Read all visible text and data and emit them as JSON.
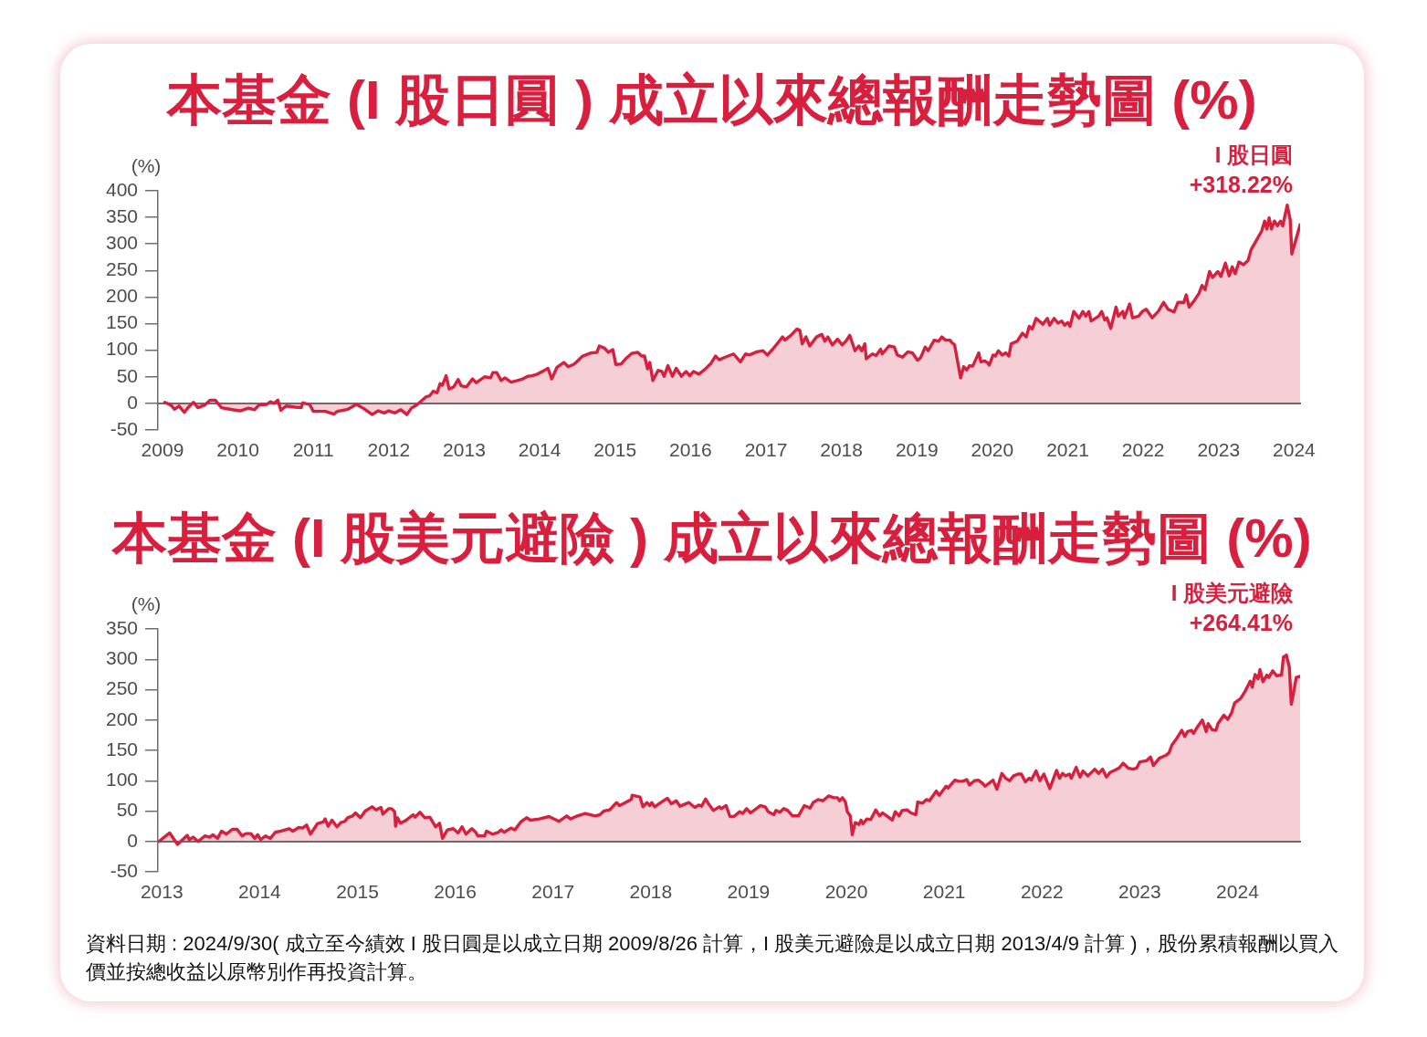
{
  "chart_data": [
    {
      "type": "area",
      "title": "本基金 (I 股日圓 ) 成立以來總報酬走勢圖 (%)",
      "ylabel": "(%)",
      "x": [
        2009.03,
        2009.11,
        2009.16,
        2009.22,
        2009.29,
        2009.34,
        2009.41,
        2009.47,
        2009.56,
        2009.63,
        2009.7,
        2009.78,
        2009.89,
        2010.03,
        2010.14,
        2010.22,
        2010.28,
        2010.38,
        2010.43,
        2010.48,
        2010.53,
        2010.57,
        2010.64,
        2010.76,
        2010.84,
        2010.86,
        2010.95,
        2011.0,
        2011.16,
        2011.27,
        2011.32,
        2011.46,
        2011.57,
        2011.66,
        2011.78,
        2011.86,
        2011.94,
        2012.0,
        2012.08,
        2012.16,
        2012.24,
        2012.3,
        2012.38,
        2012.49,
        2012.54,
        2012.59,
        2012.64,
        2012.68,
        2012.71,
        2012.76,
        2012.8,
        2012.86,
        2012.92,
        2012.96,
        2013.03,
        2013.11,
        2013.16,
        2013.27,
        2013.35,
        2013.38,
        2013.43,
        2013.49,
        2013.54,
        2013.62,
        2013.68,
        2013.76,
        2013.84,
        2013.9,
        2013.97,
        2014.05,
        2014.11,
        2014.16,
        2014.23,
        2014.32,
        2014.38,
        2014.46,
        2014.57,
        2014.68,
        2014.76,
        2014.79,
        2014.86,
        2014.91,
        2014.97,
        2015.01,
        2015.08,
        2015.14,
        2015.22,
        2015.3,
        2015.35,
        2015.39,
        2015.43,
        2015.46,
        2015.5,
        2015.57,
        2015.62,
        2015.65,
        2015.7,
        2015.76,
        2015.81,
        2015.88,
        2015.94,
        2015.99,
        2016.04,
        2016.11,
        2016.19,
        2016.27,
        2016.33,
        2016.38,
        2016.46,
        2016.57,
        2016.66,
        2016.73,
        2016.78,
        2016.88,
        2016.96,
        2017.02,
        2017.09,
        2017.22,
        2017.25,
        2017.33,
        2017.41,
        2017.45,
        2017.48,
        2017.53,
        2017.58,
        2017.67,
        2017.74,
        2017.78,
        2017.82,
        2017.88,
        2017.95,
        2018.01,
        2018.06,
        2018.11,
        2018.18,
        2018.23,
        2018.27,
        2018.31,
        2018.33,
        2018.41,
        2018.46,
        2018.52,
        2018.54,
        2018.63,
        2018.7,
        2018.74,
        2018.81,
        2018.88,
        2018.94,
        2019.01,
        2019.05,
        2019.11,
        2019.15,
        2019.23,
        2019.29,
        2019.33,
        2019.38,
        2019.44,
        2019.46,
        2019.5,
        2019.58,
        2019.62,
        2019.66,
        2019.7,
        2019.74,
        2019.82,
        2019.85,
        2019.9,
        2019.94,
        2019.96,
        2020.01,
        2020.04,
        2020.08,
        2020.13,
        2020.18,
        2020.22,
        2020.25,
        2020.33,
        2020.4,
        2020.45,
        2020.49,
        2020.53,
        2020.58,
        2020.67,
        2020.73,
        2020.76,
        2020.82,
        2020.87,
        2020.92,
        2020.96,
        2021.0,
        2021.03,
        2021.08,
        2021.15,
        2021.2,
        2021.24,
        2021.28,
        2021.31,
        2021.41,
        2021.45,
        2021.49,
        2021.52,
        2021.57,
        2021.64,
        2021.67,
        2021.73,
        2021.75,
        2021.82,
        2021.86,
        2021.94,
        2021.99,
        2022.04,
        2022.12,
        2022.2,
        2022.27,
        2022.33,
        2022.41,
        2022.46,
        2022.54,
        2022.57,
        2022.61,
        2022.67,
        2022.74,
        2022.78,
        2022.82,
        2022.88,
        2022.92,
        2022.99,
        2023.03,
        2023.09,
        2023.14,
        2023.18,
        2023.22,
        2023.27,
        2023.33,
        2023.39,
        2023.43,
        2023.49,
        2023.57,
        2023.61,
        2023.64,
        2023.67,
        2023.7,
        2023.74,
        2023.78,
        2023.82,
        2023.85,
        2023.91,
        2023.95,
        2023.97,
        2024.02,
        2024.08
      ],
      "series": [
        {
          "name": "I 股日圓",
          "color": "#d6203e",
          "values": [
            2,
            -3,
            -11,
            -5,
            -17,
            -8,
            2,
            -8,
            -3,
            6,
            6,
            -8,
            -11,
            -14,
            -9,
            -12,
            -3,
            -2,
            3,
            0,
            6,
            -13,
            -5,
            -7,
            -8,
            1,
            -2,
            -15,
            -15,
            -20,
            -15,
            -11,
            -2,
            -9,
            -21,
            -14,
            -18,
            -14,
            -18,
            -12,
            -21,
            -9,
            -2,
            12,
            14,
            23,
            20,
            37,
            34,
            52,
            27,
            31,
            45,
            33,
            31,
            46,
            39,
            50,
            48,
            58,
            58,
            43,
            48,
            40,
            42,
            45,
            51,
            52,
            55,
            61,
            66,
            46,
            68,
            77,
            69,
            74,
            89,
            95,
            96,
            108,
            104,
            96,
            101,
            73,
            74,
            84,
            94,
            96,
            89,
            89,
            65,
            77,
            43,
            62,
            60,
            51,
            71,
            51,
            66,
            51,
            60,
            52,
            60,
            55,
            64,
            75,
            89,
            82,
            87,
            93,
            78,
            93,
            91,
            97,
            99,
            91,
            102,
            125,
            119,
            128,
            140,
            137,
            112,
            125,
            108,
            125,
            130,
            117,
            125,
            110,
            121,
            110,
            117,
            128,
            99,
            108,
            99,
            112,
            84,
            93,
            90,
            102,
            93,
            108,
            106,
            91,
            87,
            97,
            95,
            81,
            86,
            106,
            99,
            119,
            117,
            125,
            119,
            119,
            115,
            110,
            48,
            69,
            63,
            71,
            70,
            95,
            78,
            80,
            76,
            72,
            91,
            89,
            99,
            91,
            95,
            89,
            112,
            117,
            132,
            125,
            145,
            140,
            160,
            149,
            160,
            147,
            160,
            151,
            155,
            147,
            152,
            145,
            173,
            160,
            173,
            164,
            173,
            155,
            164,
            173,
            157,
            161,
            141,
            181,
            164,
            173,
            161,
            187,
            161,
            164,
            173,
            177,
            161,
            173,
            190,
            177,
            172,
            190,
            190,
            204,
            181,
            192,
            207,
            222,
            214,
            248,
            237,
            248,
            239,
            264,
            240,
            257,
            244,
            266,
            261,
            269,
            289,
            304,
            324,
            343,
            328,
            349,
            328,
            343,
            334,
            343,
            334,
            373,
            345,
            281,
            306,
            336
          ]
        }
      ],
      "xlim": [
        2008.94,
        2024.08
      ],
      "xticks": [
        2009,
        2010,
        2011,
        2012,
        2013,
        2014,
        2015,
        2016,
        2017,
        2018,
        2019,
        2020,
        2021,
        2022,
        2023,
        2024
      ],
      "ylim": [
        -50,
        400
      ],
      "yticks": [
        -50,
        0,
        50,
        100,
        150,
        200,
        250,
        300,
        350,
        400
      ],
      "grid": false,
      "legend": false,
      "marker": "none",
      "line_style": "solid",
      "annotations": [
        "+318.22%"
      ]
    },
    {
      "type": "area",
      "title": "本基金 (I 股美元避險 ) 成立以來總報酬走勢圖 (%)",
      "ylabel": "(%)",
      "x": [
        2012.97,
        2013.08,
        2013.16,
        2013.26,
        2013.28,
        2013.32,
        2013.37,
        2013.44,
        2013.49,
        2013.52,
        2013.57,
        2013.61,
        2013.66,
        2013.72,
        2013.77,
        2013.82,
        2013.86,
        2013.91,
        2013.95,
        2013.98,
        2014.01,
        2014.06,
        2014.11,
        2014.16,
        2014.22,
        2014.26,
        2014.3,
        2014.34,
        2014.4,
        2014.44,
        2014.48,
        2014.52,
        2014.59,
        2014.65,
        2014.67,
        2014.7,
        2014.74,
        2014.79,
        2014.83,
        2014.87,
        2014.9,
        2014.95,
        2014.98,
        2015.03,
        2015.08,
        2015.15,
        2015.19,
        2015.24,
        2015.26,
        2015.32,
        2015.35,
        2015.38,
        2015.39,
        2015.41,
        2015.44,
        2015.49,
        2015.53,
        2015.57,
        2015.59,
        2015.64,
        2015.69,
        2015.74,
        2015.8,
        2015.84,
        2015.87,
        2015.92,
        2015.98,
        2016.03,
        2016.07,
        2016.11,
        2016.17,
        2016.21,
        2016.23,
        2016.3,
        2016.32,
        2016.38,
        2016.44,
        2016.47,
        2016.5,
        2016.57,
        2016.61,
        2016.67,
        2016.73,
        2016.77,
        2016.86,
        2016.96,
        2017.06,
        2017.14,
        2017.18,
        2017.25,
        2017.33,
        2017.43,
        2017.48,
        2017.52,
        2017.58,
        2017.65,
        2017.68,
        2017.74,
        2017.8,
        2017.81,
        2017.89,
        2017.92,
        2017.96,
        2017.99,
        2018.01,
        2018.04,
        2018.12,
        2018.17,
        2018.21,
        2018.26,
        2018.3,
        2018.39,
        2018.45,
        2018.49,
        2018.52,
        2018.56,
        2018.59,
        2018.64,
        2018.7,
        2018.72,
        2018.77,
        2018.81,
        2018.85,
        2018.91,
        2018.94,
        2018.98,
        2019.02,
        2019.12,
        2019.17,
        2019.2,
        2019.26,
        2019.28,
        2019.32,
        2019.36,
        2019.4,
        2019.45,
        2019.51,
        2019.57,
        2019.63,
        2019.66,
        2019.71,
        2019.76,
        2019.82,
        2019.87,
        2019.91,
        2019.93,
        2019.96,
        2019.99,
        2020.01,
        2020.04,
        2020.06,
        2020.09,
        2020.13,
        2020.15,
        2020.17,
        2020.21,
        2020.25,
        2020.3,
        2020.34,
        2020.37,
        2020.42,
        2020.47,
        2020.5,
        2020.54,
        2020.57,
        2020.62,
        2020.66,
        2020.71,
        2020.73,
        2020.78,
        2020.82,
        2020.85,
        2020.92,
        2020.95,
        2021.02,
        2021.04,
        2021.11,
        2021.15,
        2021.19,
        2021.23,
        2021.26,
        2021.31,
        2021.35,
        2021.39,
        2021.42,
        2021.5,
        2021.54,
        2021.59,
        2021.63,
        2021.67,
        2021.71,
        2021.76,
        2021.79,
        2021.83,
        2021.87,
        2021.89,
        2021.94,
        2021.98,
        2022.02,
        2022.08,
        2022.15,
        2022.18,
        2022.21,
        2022.24,
        2022.28,
        2022.3,
        2022.35,
        2022.39,
        2022.42,
        2022.47,
        2022.54,
        2022.58,
        2022.62,
        2022.66,
        2022.7,
        2022.74,
        2022.79,
        2022.83,
        2022.88,
        2022.93,
        2022.97,
        2023.0,
        2023.07,
        2023.11,
        2023.14,
        2023.2,
        2023.27,
        2023.3,
        2023.33,
        2023.38,
        2023.43,
        2023.46,
        2023.49,
        2023.53,
        2023.55,
        2023.58,
        2023.64,
        2023.68,
        2023.7,
        2023.74,
        2023.78,
        2023.8,
        2023.86,
        2023.9,
        2023.94,
        2023.97,
        2024.03,
        2024.08,
        2024.13,
        2024.15,
        2024.18,
        2024.21,
        2024.23,
        2024.26,
        2024.3,
        2024.32,
        2024.36,
        2024.4,
        2024.45,
        2024.47,
        2024.5,
        2024.53,
        2024.55,
        2024.58,
        2024.6,
        2024.64
      ],
      "series": [
        {
          "name": "I 股美元避險",
          "color": "#d6203e",
          "values": [
            0,
            14,
            -5,
            10,
            3,
            7,
            0,
            9,
            7,
            11,
            5,
            17,
            12,
            20,
            20,
            9,
            13,
            13,
            5,
            11,
            3,
            9,
            5,
            15,
            17,
            19,
            21,
            17,
            23,
            22,
            27,
            12,
            29,
            32,
            37,
            25,
            35,
            24,
            31,
            33,
            39,
            42,
            47,
            39,
            50,
            57,
            52,
            56,
            45,
            54,
            54,
            49,
            25,
            39,
            30,
            34,
            39,
            44,
            40,
            48,
            39,
            40,
            24,
            30,
            5,
            19,
            21,
            14,
            24,
            12,
            21,
            15,
            9,
            9,
            17,
            12,
            15,
            19,
            15,
            22,
            19,
            32,
            39,
            35,
            37,
            41,
            33,
            42,
            37,
            42,
            46,
            42,
            44,
            50,
            52,
            64,
            59,
            64,
            69,
            76,
            73,
            57,
            64,
            59,
            64,
            57,
            66,
            71,
            62,
            67,
            58,
            64,
            56,
            60,
            58,
            70,
            62,
            51,
            57,
            54,
            59,
            41,
            41,
            49,
            46,
            54,
            47,
            59,
            57,
            49,
            44,
            51,
            48,
            54,
            51,
            42,
            42,
            59,
            55,
            64,
            69,
            67,
            75,
            72,
            72,
            67,
            72,
            65,
            49,
            42,
            11,
            31,
            28,
            35,
            29,
            37,
            36,
            52,
            42,
            47,
            41,
            35,
            49,
            42,
            51,
            52,
            47,
            44,
            65,
            63,
            69,
            67,
            83,
            76,
            91,
            88,
            101,
            99,
            99,
            102,
            93,
            100,
            101,
            96,
            91,
            101,
            86,
            112,
            104,
            100,
            108,
            111,
            111,
            98,
            104,
            101,
            116,
            100,
            111,
            87,
            117,
            104,
            112,
            108,
            111,
            104,
            122,
            106,
            116,
            108,
            119,
            112,
            119,
            106,
            114,
            117,
            121,
            129,
            121,
            119,
            121,
            131,
            133,
            139,
            125,
            137,
            142,
            146,
            159,
            170,
            183,
            173,
            181,
            183,
            178,
            186,
            200,
            181,
            194,
            184,
            183,
            194,
            208,
            201,
            212,
            228,
            235,
            248,
            264,
            254,
            275,
            268,
            283,
            263,
            274,
            270,
            281,
            273,
            274,
            304,
            307,
            287,
            226,
            251,
            270,
            272
          ]
        }
      ],
      "xlim": [
        2012.96,
        2024.64
      ],
      "xticks": [
        2013,
        2014,
        2015,
        2016,
        2017,
        2018,
        2019,
        2020,
        2021,
        2022,
        2023,
        2024
      ],
      "ylim": [
        -50,
        350
      ],
      "yticks": [
        -50,
        0,
        50,
        100,
        150,
        200,
        250,
        300,
        350
      ],
      "grid": false,
      "legend": false,
      "marker": "none",
      "line_style": "solid",
      "annotations": [
        "+264.41%",
        "資料日期 : 2024/9/30( 成立至今績效 I 股日圓是以成立日期 2009/8/26 計算，I 股美元避險是以成立日期 2013/4/9 計算 )，股份累積報酬以買入價並按總收益以原幣別作再投資計算。"
      ]
    }
  ]
}
